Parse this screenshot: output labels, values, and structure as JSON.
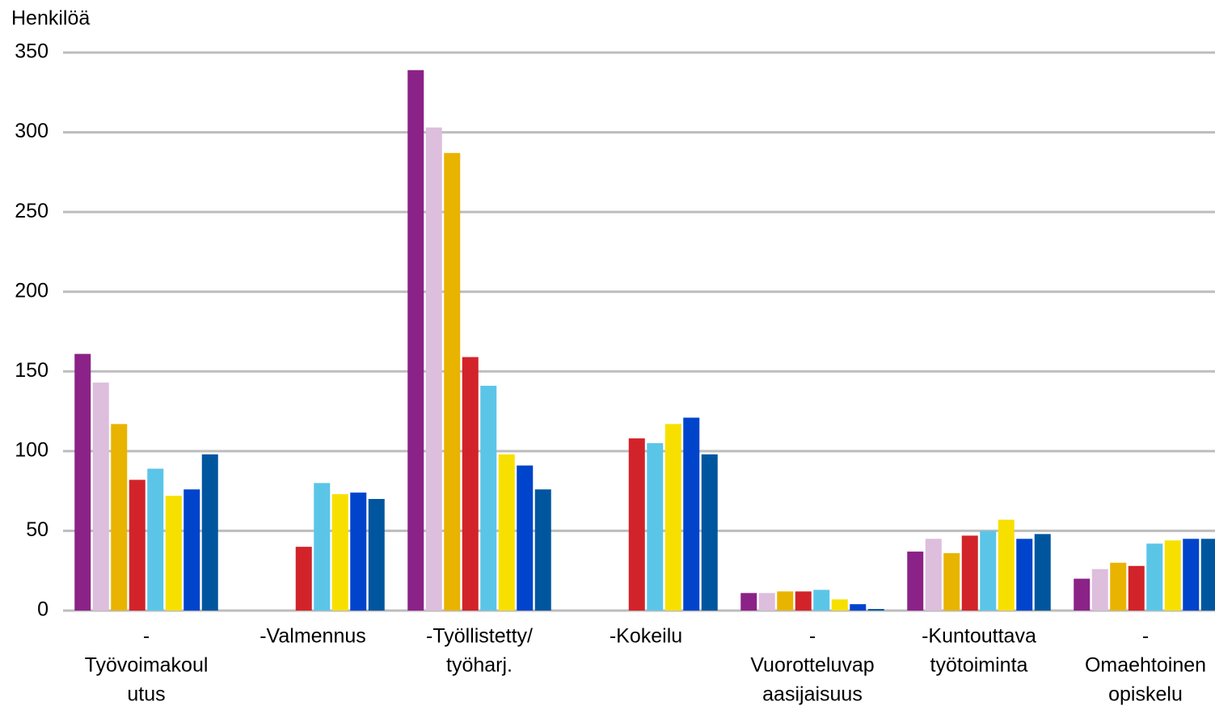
{
  "chart_data": {
    "type": "bar",
    "y_label": "Henkilöä",
    "categories": [
      [
        "-",
        "Työvoimakoul",
        "utus"
      ],
      [
        "-Valmennus"
      ],
      [
        "-Työllistetty/",
        "työharj."
      ],
      [
        "-Kokeilu"
      ],
      [
        "-",
        "Vuorotteluvap",
        "aasijaisuus"
      ],
      [
        "-Kuntouttava",
        "työtoiminta"
      ],
      [
        "-",
        "Omaehtoinen",
        "opiskelu"
      ]
    ],
    "series": [
      {
        "color": "#8b2287",
        "values": [
          161,
          null,
          339,
          null,
          11,
          37,
          20
        ]
      },
      {
        "color": "#ddbedd",
        "values": [
          143,
          null,
          303,
          null,
          11,
          45,
          26
        ]
      },
      {
        "color": "#e8b400",
        "values": [
          117,
          null,
          287,
          null,
          12,
          36,
          30
        ]
      },
      {
        "color": "#d2232a",
        "values": [
          82,
          40,
          159,
          108,
          12,
          47,
          28
        ]
      },
      {
        "color": "#5bc5e8",
        "values": [
          89,
          80,
          141,
          105,
          13,
          50,
          42
        ]
      },
      {
        "color": "#f7e000",
        "values": [
          72,
          73,
          98,
          117,
          7,
          57,
          44
        ]
      },
      {
        "color": "#0044cc",
        "values": [
          76,
          74,
          91,
          121,
          4,
          45,
          45
        ]
      },
      {
        "color": "#00569e",
        "values": [
          98,
          70,
          76,
          98,
          1,
          48,
          45
        ]
      }
    ],
    "ylim": [
      0,
      350
    ],
    "yticks": [
      0,
      50,
      100,
      150,
      200,
      250,
      300,
      350
    ],
    "grid": true
  }
}
